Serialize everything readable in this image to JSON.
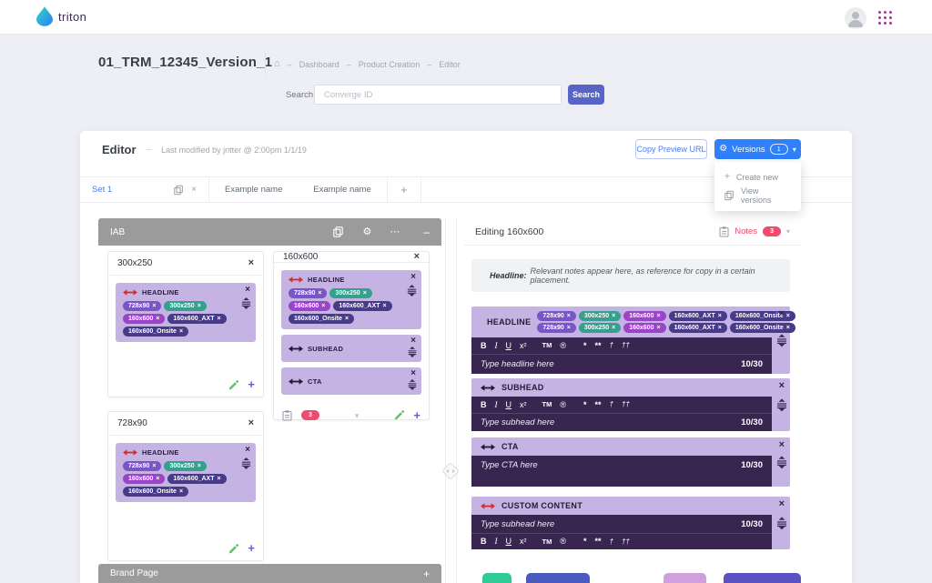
{
  "topbar": {
    "brand": "triton"
  },
  "page": {
    "title": "01_TRM_12345_Version_1",
    "breadcrumb": [
      "Dashboard",
      "Product Creation",
      "Editor"
    ],
    "search_label": "Search:",
    "search_placeholder": "Converge ID",
    "search_button": "Search"
  },
  "editor": {
    "title": "Editor",
    "last_modified": "Last modified by jritter @ 2:00pm 1/1/19",
    "copy_preview_url": "Copy Preview URL",
    "versions_label": "Versions",
    "versions_count": "1",
    "menu_create_new": "Create new",
    "menu_view_versions": "View versions",
    "tabs": [
      "Set 1",
      "Example name",
      "Example name"
    ],
    "add_tab": "+"
  },
  "placement_tags": [
    {
      "label": "728x90",
      "color": "#7a55c5"
    },
    {
      "label": "300x250",
      "color": "#35a08c"
    },
    {
      "label": "160x600",
      "color": "#9b44ca"
    },
    {
      "label": "160x600_AXT",
      "color": "#473a88"
    },
    {
      "label": "160x600_Onsite",
      "color": "#473a88"
    }
  ],
  "toolbar": [
    {
      "label": "B",
      "name": "bold"
    },
    {
      "label": "I",
      "name": "italic"
    },
    {
      "label": "U",
      "name": "underline"
    },
    {
      "label": "x²",
      "name": "superscript"
    },
    {
      "label": "TM",
      "name": "trademark"
    },
    {
      "label": "®",
      "name": "registered"
    },
    {
      "label": "*",
      "name": "asterisk"
    },
    {
      "label": "**",
      "name": "double-asterisk"
    },
    {
      "label": "†",
      "name": "dagger"
    },
    {
      "label": "††",
      "name": "double-dagger"
    }
  ],
  "left_panel": {
    "group_title": "IAB",
    "headline_label": "HEADLINE",
    "subhead_label": "SUBHEAD",
    "cta_label": "CTA",
    "cards": {
      "c300": {
        "size": "300x250"
      },
      "c160": {
        "size": "160x600",
        "notes_count": "3"
      },
      "c728": {
        "size": "728x90"
      }
    },
    "brand_page": "Brand Page",
    "add": "+"
  },
  "right_panel": {
    "title": "Editing 160x600",
    "notes_label": "Notes",
    "notes_count": "3",
    "note_prefix": "Headline:",
    "note_text": "Relevant notes appear here, as reference for copy in a certain placement.",
    "sections": {
      "headline": {
        "label": "HEADLINE",
        "placeholder": "Type headline here",
        "counter": "10/30"
      },
      "subhead": {
        "label": "SUBHEAD",
        "placeholder": "Type subhead here",
        "counter": "10/30"
      },
      "cta": {
        "label": "CTA",
        "placeholder": "Type CTA here",
        "counter": "10/30"
      },
      "custom": {
        "label": "CUSTOM CONTENT",
        "placeholder": "Type subhead here",
        "counter": "10/30"
      }
    }
  },
  "icons": {
    "close": "×",
    "chevron_down": "▾",
    "home": "⌂",
    "gear": "⚙",
    "ellipsis": "⋯",
    "minimize": "–",
    "plus": "+",
    "dash": "–"
  },
  "colors": {
    "accent_blue": "#2f80f9",
    "indigo_button": "#5766c6",
    "link_blue": "#4d7df2",
    "light_purple": "#c5b4e3",
    "dark_purple": "#392650",
    "arrow_red": "#d32f2f",
    "badge_red": "#ef4b6e",
    "gray_bar": "#9b9b9b",
    "edit_green": "#69bd6d",
    "partial_buttons": [
      "#2ecb97",
      "#4b5abf",
      "#cfa0dc",
      "#5a52c2"
    ]
  }
}
